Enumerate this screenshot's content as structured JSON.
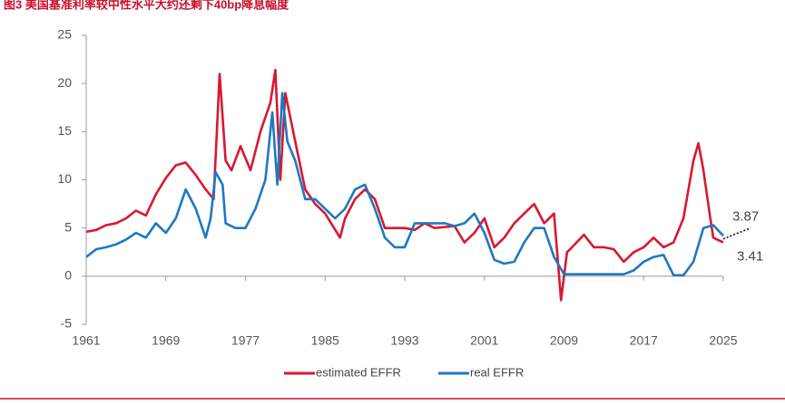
{
  "chart_data": {
    "type": "line",
    "title": "图3 美国基准利率较中性水平大约还剩下40bp降息幅度",
    "xlim": [
      1961,
      2025
    ],
    "xticks": [
      1961,
      1969,
      1977,
      1985,
      1993,
      2001,
      2009,
      2017,
      2025
    ],
    "ylim": [
      -5,
      25
    ],
    "yticks": [
      -5,
      0,
      5,
      10,
      15,
      20,
      25
    ],
    "legend": "bottom",
    "annotations": [
      {
        "text": "3.87",
        "value": 3.87
      },
      {
        "text": "3.41",
        "value": 3.41
      }
    ],
    "series": [
      {
        "name": "estimated EFFR",
        "color": "#d7192f",
        "x": [
          1961,
          1962,
          1963,
          1964,
          1965,
          1966,
          1967,
          1968,
          1969,
          1970,
          1971,
          1972,
          1973,
          1973.8,
          1974.4,
          1975,
          1975.6,
          1976.5,
          1977.5,
          1978.5,
          1979.5,
          1980,
          1980.5,
          1981,
          1982,
          1983,
          1984,
          1985,
          1986.5,
          1987,
          1988,
          1989,
          1990,
          1991,
          1993,
          1994,
          1995,
          1996,
          1998,
          1999,
          2000,
          2001,
          2002,
          2003,
          2004,
          2005,
          2006,
          2007,
          2008,
          2008.7,
          2009.3,
          2009.8,
          2011,
          2012,
          2013,
          2014,
          2015,
          2016,
          2017,
          2018,
          2019,
          2020,
          2021,
          2022,
          2022.5,
          2023,
          2023.7,
          2024,
          2025
        ],
        "values": [
          4.6,
          4.8,
          5.3,
          5.5,
          6.0,
          6.8,
          6.3,
          8.5,
          10.2,
          11.5,
          11.8,
          10.5,
          9.0,
          8.0,
          21.0,
          12.0,
          11.0,
          13.5,
          11.0,
          15.0,
          18.0,
          21.4,
          10.0,
          19.0,
          14.0,
          9.0,
          7.5,
          6.5,
          4.0,
          6.0,
          8.0,
          9.0,
          8.0,
          5.0,
          5.0,
          4.8,
          5.5,
          5.0,
          5.2,
          3.5,
          4.5,
          6.0,
          3.0,
          4.0,
          5.5,
          6.5,
          7.5,
          5.5,
          6.5,
          -2.5,
          2.5,
          3.0,
          4.3,
          3.0,
          3.0,
          2.8,
          1.5,
          2.5,
          3.0,
          4.0,
          3.0,
          3.5,
          6.0,
          12.0,
          13.8,
          11.0,
          6.0,
          4.0,
          3.5
        ]
      },
      {
        "name": "real EFFR",
        "color": "#1f78c1",
        "x": [
          1961,
          1962,
          1963,
          1964,
          1965,
          1966,
          1967,
          1968,
          1969,
          1970,
          1971,
          1972,
          1973,
          1973.5,
          1974,
          1974.7,
          1975,
          1976,
          1977,
          1978,
          1979,
          1979.7,
          1980.2,
          1980.7,
          1981.2,
          1982,
          1983,
          1984,
          1985,
          1986,
          1987,
          1988,
          1989,
          1990,
          1991,
          1992,
          1993,
          1994,
          1995,
          1996,
          1997,
          1998,
          1999,
          2000,
          2001,
          2002,
          2003,
          2004,
          2005,
          2006,
          2007,
          2008,
          2009,
          2010,
          2015,
          2016,
          2017,
          2018,
          2019,
          2020,
          2021,
          2022,
          2023,
          2024,
          2025
        ],
        "values": [
          2.0,
          2.8,
          3.0,
          3.3,
          3.8,
          4.5,
          4.0,
          5.5,
          4.5,
          6.0,
          9.0,
          7.0,
          4.0,
          6.0,
          10.8,
          9.5,
          5.5,
          5.0,
          5.0,
          7.0,
          10.0,
          17.0,
          9.5,
          19.0,
          14.0,
          12.0,
          8.0,
          8.0,
          7.0,
          6.0,
          7.0,
          9.0,
          9.5,
          7.0,
          4.0,
          3.0,
          3.0,
          5.5,
          5.5,
          5.5,
          5.5,
          5.2,
          5.5,
          6.5,
          4.5,
          1.7,
          1.3,
          1.5,
          3.5,
          5.0,
          5.0,
          2.0,
          0.2,
          0.2,
          0.2,
          0.6,
          1.5,
          2.0,
          2.2,
          0.1,
          0.1,
          1.5,
          5.0,
          5.3,
          4.2
        ]
      }
    ]
  }
}
